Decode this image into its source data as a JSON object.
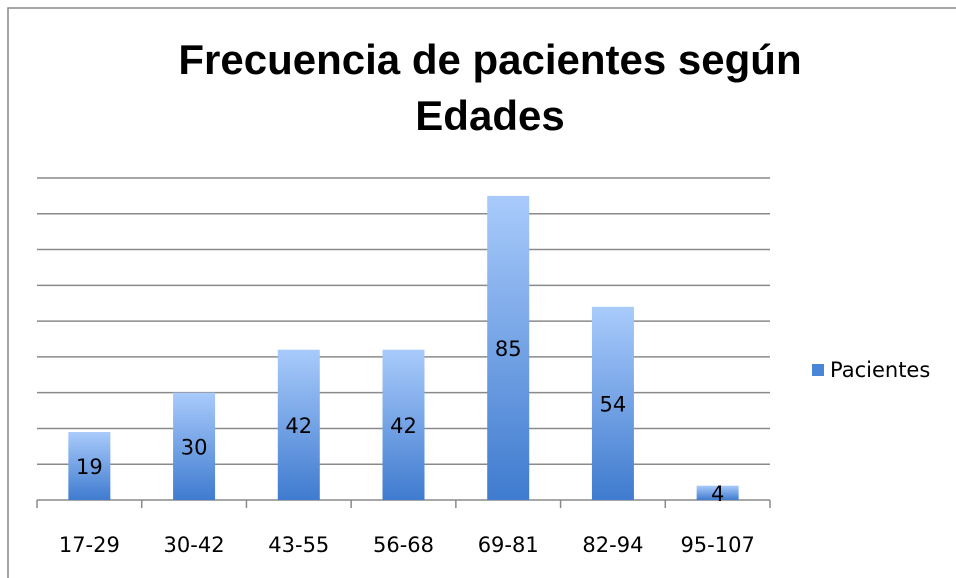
{
  "chart_data": {
    "type": "bar",
    "title": "Frecuencia de pacientes según Edades",
    "categories": [
      "17-29",
      "30-42",
      "43-55",
      "56-68",
      "69-81",
      "82-94",
      "95-107"
    ],
    "series": [
      {
        "name": "Pacientes",
        "color": "#4a86d8",
        "values": [
          19,
          30,
          42,
          42,
          85,
          54,
          4
        ]
      }
    ],
    "ylim": [
      0,
      90
    ],
    "yticks": [
      0,
      10,
      20,
      30,
      40,
      50,
      60,
      70,
      80,
      90
    ],
    "grid": true,
    "legend": "right"
  }
}
